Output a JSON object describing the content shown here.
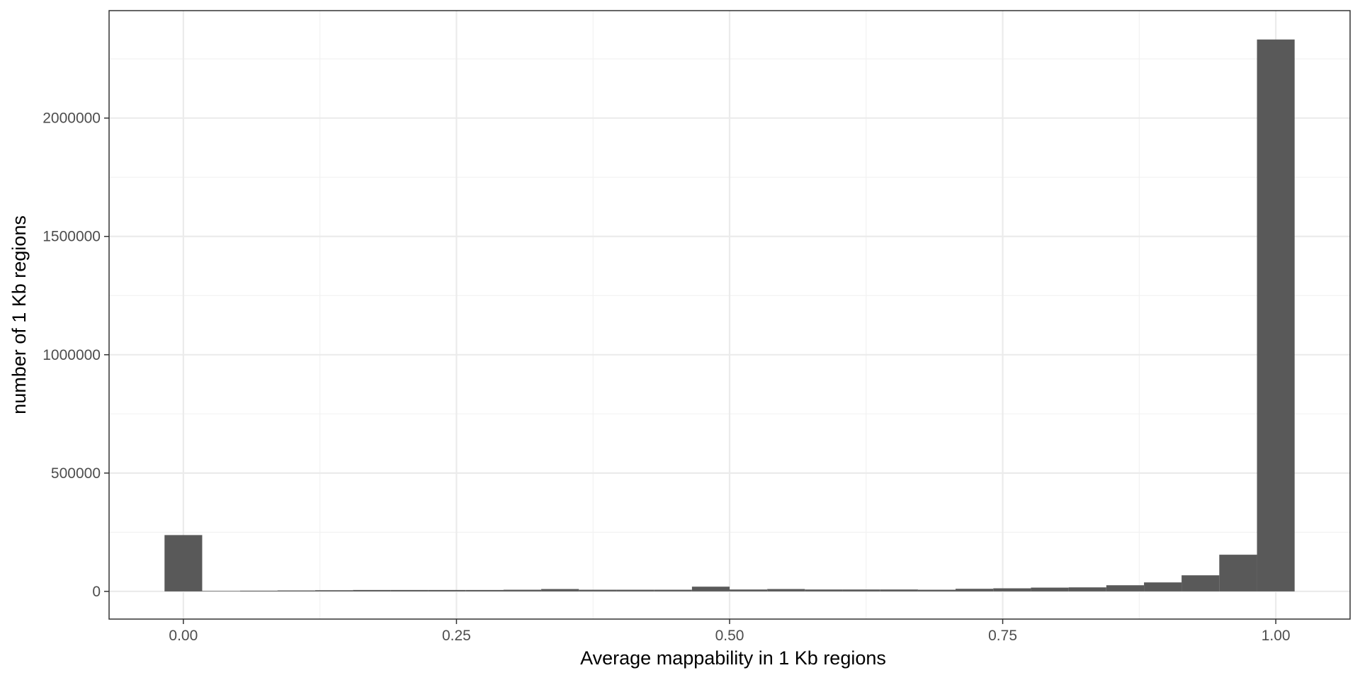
{
  "chart_data": {
    "type": "bar",
    "xlabel": "Average mappability in 1 Kb regions",
    "ylabel": "number of 1 Kb regions",
    "xlim": [
      -0.068,
      1.068
    ],
    "ylim": [
      -117000,
      2454000
    ],
    "xticks": [
      0.0,
      0.25,
      0.5,
      0.75,
      1.0
    ],
    "xtick_labels": [
      "0.00",
      "0.25",
      "0.50",
      "0.75",
      "1.00"
    ],
    "yticks": [
      0,
      500000,
      1000000,
      1500000,
      2000000
    ],
    "ytick_labels": [
      "0",
      "500000",
      "1000000",
      "1500000",
      "2000000"
    ],
    "grid": true,
    "bin_width": 0.03448,
    "bin_centers": [
      0.0,
      0.0345,
      0.069,
      0.1034,
      0.1379,
      0.1724,
      0.2069,
      0.2414,
      0.2759,
      0.3103,
      0.3448,
      0.3793,
      0.4138,
      0.4483,
      0.4828,
      0.5172,
      0.5517,
      0.5862,
      0.6207,
      0.6552,
      0.6897,
      0.7241,
      0.7586,
      0.7931,
      0.8276,
      0.8621,
      0.8966,
      0.931,
      0.9655,
      1.0
    ],
    "values": [
      238000,
      2000,
      3000,
      4000,
      5000,
      6000,
      6000,
      6000,
      6000,
      7000,
      10000,
      7000,
      7000,
      7000,
      20000,
      8000,
      10000,
      8000,
      8000,
      8000,
      7000,
      11000,
      13000,
      16000,
      17000,
      26000,
      38000,
      68000,
      155000,
      2332000
    ],
    "bar_color": "#595959"
  }
}
